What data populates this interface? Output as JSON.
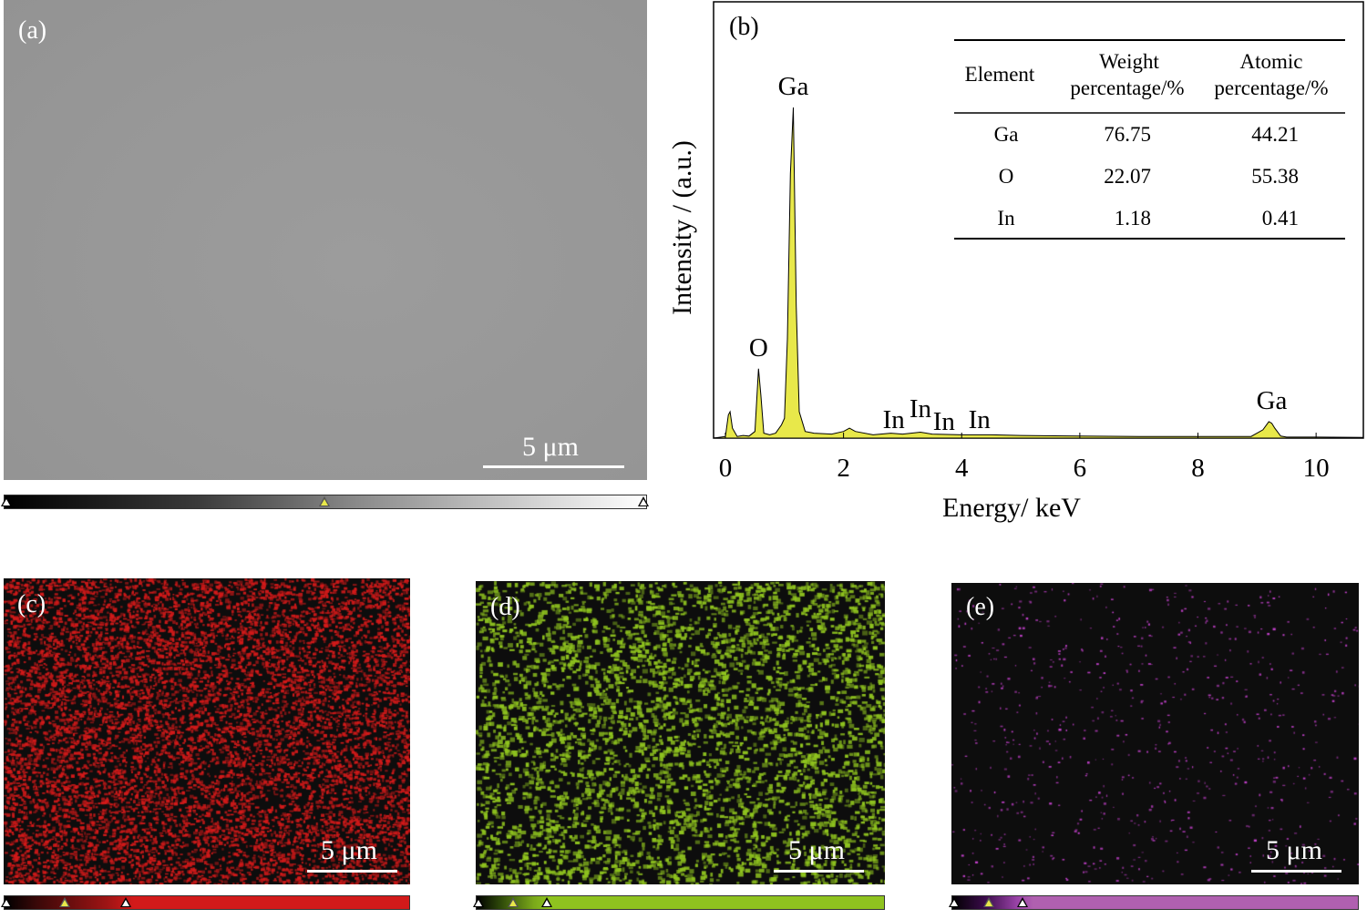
{
  "panels": {
    "a": {
      "label": "(a)",
      "scalebar": "5 μm"
    },
    "b": {
      "label": "(b)"
    },
    "c": {
      "label": "(c)",
      "scalebar": "5 μm"
    },
    "d": {
      "label": "(d)",
      "scalebar": "5 μm"
    },
    "e": {
      "label": "(e)",
      "scalebar": "5 μm"
    }
  },
  "colors": {
    "sem_gray": "#9a9a9a",
    "spectrum_fill": "#e8e84a",
    "map_ga": "#d21a1a",
    "map_o": "#8fc31f",
    "map_in": "#c040c8",
    "map_bg": "#0d0d0d"
  },
  "chart_data": {
    "type": "line",
    "xlabel": "Energy/ keV",
    "ylabel": "Intensity / (a.u.)",
    "xlim": [
      -0.2,
      10.8
    ],
    "ylim": [
      0,
      100
    ],
    "xticks": [
      0,
      2,
      4,
      6,
      8,
      10
    ],
    "x": [
      -0.2,
      0.0,
      0.05,
      0.08,
      0.12,
      0.2,
      0.3,
      0.4,
      0.5,
      0.56,
      0.6,
      0.65,
      0.75,
      0.85,
      0.95,
      1.0,
      1.05,
      1.1,
      1.15,
      1.2,
      1.25,
      1.35,
      1.5,
      1.8,
      2.0,
      2.1,
      2.2,
      2.5,
      2.8,
      3.0,
      3.3,
      3.5,
      4.0,
      4.5,
      5.0,
      6.0,
      7.0,
      8.0,
      8.9,
      9.1,
      9.2,
      9.25,
      9.3,
      9.4,
      9.5,
      10.0,
      10.8
    ],
    "y": [
      0,
      0.5,
      7,
      8,
      3,
      0.5,
      0.8,
      0.6,
      2,
      21,
      13,
      1.5,
      1,
      1.5,
      4,
      6,
      30,
      80,
      100,
      40,
      8,
      2,
      1.5,
      1.2,
      2,
      3,
      2,
      1,
      1.5,
      1.2,
      1.8,
      1.2,
      1,
      1,
      0.8,
      0.6,
      0.5,
      0.5,
      0.5,
      2.5,
      5,
      4.5,
      3,
      0.6,
      0.3,
      0.3,
      0.2
    ],
    "peak_labels": [
      {
        "text": "O",
        "x": 0.56,
        "y": 21
      },
      {
        "text": "Ga",
        "x": 1.15,
        "y": 100
      },
      {
        "text": "In",
        "x": 2.85,
        "y": 2
      },
      {
        "text": "In",
        "x": 3.3,
        "y": 3
      },
      {
        "text": "In",
        "x": 3.7,
        "y": 1
      },
      {
        "text": "In",
        "x": 4.3,
        "y": 1
      },
      {
        "text": "Ga",
        "x": 9.25,
        "y": 5
      }
    ],
    "table": {
      "headers": [
        "Element",
        "Weight percentage/%",
        "Atomic percentage/%"
      ],
      "header_lines": [
        [
          "Element"
        ],
        [
          "Weight",
          "percentage/%"
        ],
        [
          "Atomic",
          "percentage/%"
        ]
      ],
      "rows": [
        [
          "Ga",
          "76.75",
          "44.21"
        ],
        [
          "O",
          "22.07",
          "55.38"
        ],
        [
          "In",
          "1.18",
          "0.41"
        ]
      ]
    }
  }
}
